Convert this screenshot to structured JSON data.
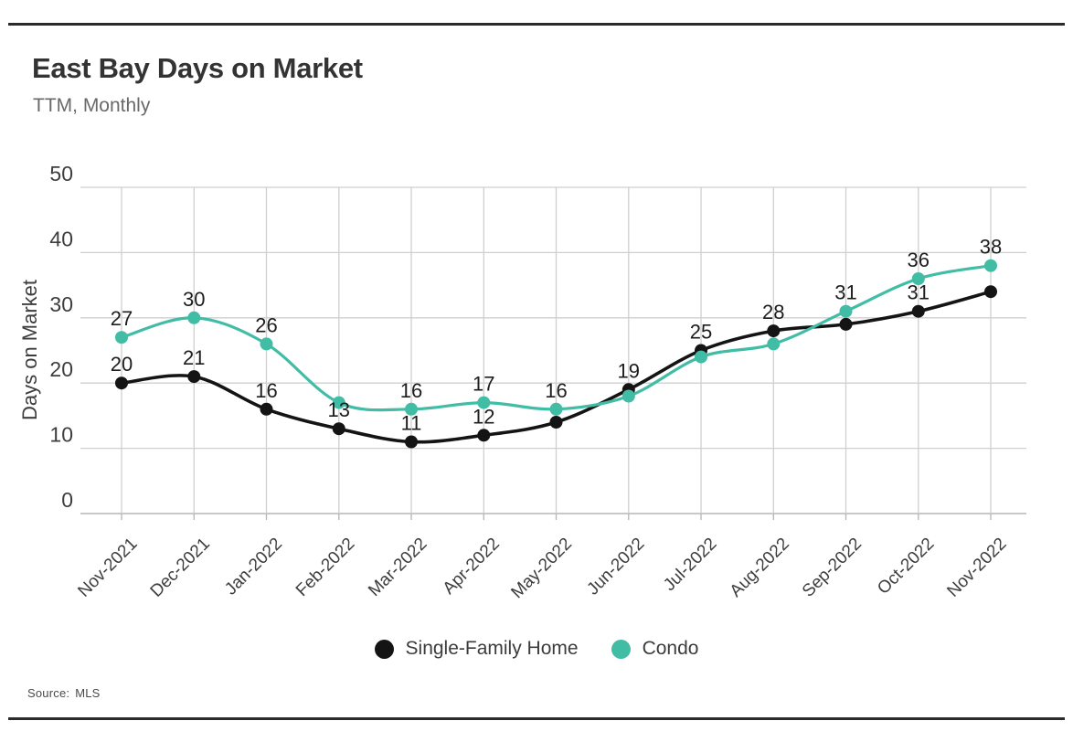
{
  "header": {
    "title": "East Bay Days on Market",
    "subtitle": "TTM, Monthly"
  },
  "chart_data": {
    "type": "line",
    "title": "East Bay Days on Market",
    "subtitle": "TTM, Monthly",
    "xlabel": "",
    "ylabel": "Days on Market",
    "ylim": [
      0,
      50
    ],
    "yticks": [
      0,
      10,
      20,
      30,
      40,
      50
    ],
    "grid": true,
    "legend_position": "bottom",
    "categories": [
      "Nov-2021",
      "Dec-2021",
      "Jan-2022",
      "Feb-2022",
      "Mar-2022",
      "Apr-2022",
      "May-2022",
      "Jun-2022",
      "Jul-2022",
      "Aug-2022",
      "Sep-2022",
      "Oct-2022",
      "Nov-2022"
    ],
    "series": [
      {
        "name": "Single-Family Home",
        "color": "#141414",
        "values": [
          20,
          21,
          16,
          13,
          11,
          12,
          14,
          19,
          25,
          28,
          29,
          31,
          34
        ],
        "label_visible": [
          true,
          true,
          true,
          true,
          true,
          true,
          false,
          true,
          true,
          true,
          false,
          true,
          false
        ]
      },
      {
        "name": "Condo",
        "color": "#41bca5",
        "values": [
          27,
          30,
          26,
          17,
          16,
          17,
          16,
          18,
          24,
          26,
          31,
          36,
          38
        ],
        "label_visible": [
          true,
          true,
          true,
          false,
          true,
          true,
          true,
          false,
          false,
          false,
          true,
          true,
          true
        ]
      }
    ]
  },
  "footer": {
    "source_label": "Source:",
    "source_value": "MLS"
  }
}
